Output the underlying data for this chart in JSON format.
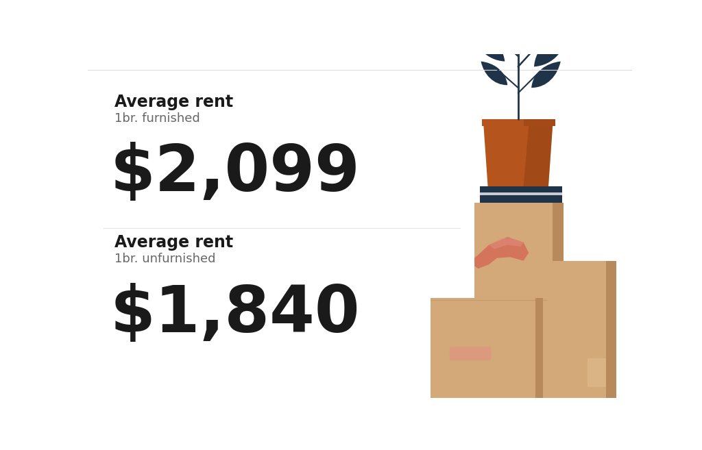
{
  "background_color": "#ffffff",
  "divider_color": "#e0e0e0",
  "section1_label": "Average rent",
  "section1_sublabel": "1br. furnished",
  "section1_value": "$2,099",
  "section2_label": "Average rent",
  "section2_sublabel": "1br. unfurnished",
  "section2_value": "$1,840",
  "label_fontsize": 17,
  "sublabel_fontsize": 13,
  "value_fontsize": 68,
  "label_color": "#1a1a1a",
  "sublabel_color": "#666666",
  "value_color": "#1a1a1a",
  "plant_dark": "#1f3349",
  "pot_color": "#b5541c",
  "pot_shadow": "#8a3d12",
  "pot_highlight": "#c46030",
  "box_color": "#d4a97a",
  "box_shadow": "#b8895a",
  "box_light": "#e0c090",
  "book_dark": "#1f3349",
  "book_light": "#e8e8ea",
  "hand_color": "#d4745a",
  "hand_light": "#e09080",
  "top_border_color": "#dddddd",
  "section_divider_color": "#e5e5e5"
}
